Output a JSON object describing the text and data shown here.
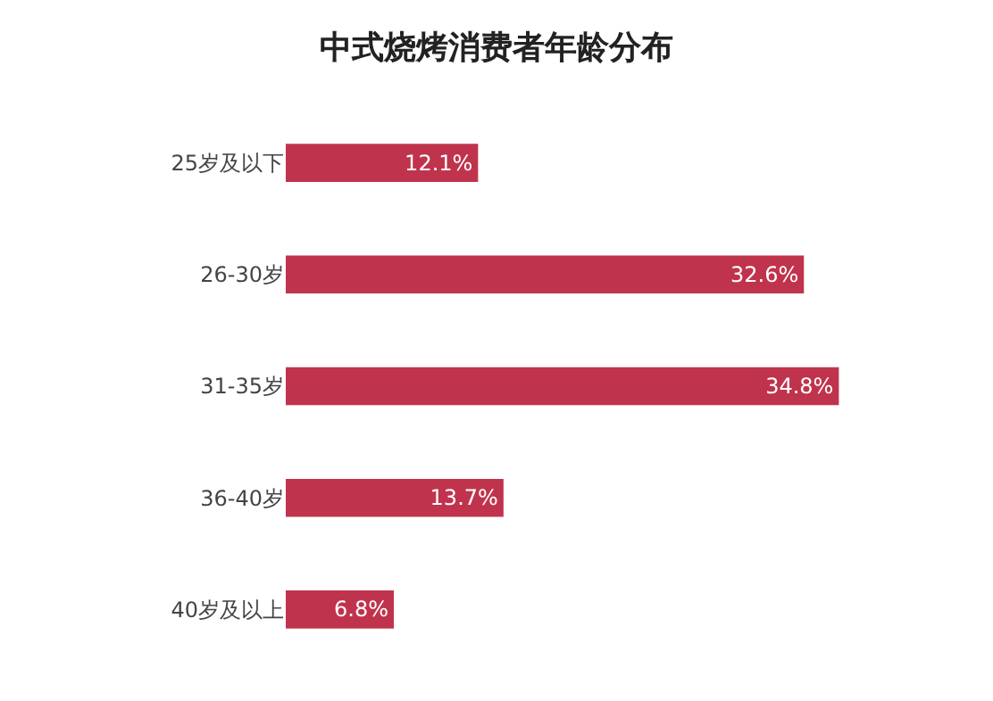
{
  "chart_data": {
    "type": "bar",
    "orientation": "horizontal",
    "title": "中式烧烤消费者年龄分布",
    "categories": [
      "25岁及以下",
      "26-30岁",
      "31-35岁",
      "36-40岁",
      "40岁及以上"
    ],
    "values": [
      12.1,
      32.6,
      34.8,
      13.7,
      6.8
    ],
    "value_labels": [
      "12.1%",
      "32.6%",
      "34.8%",
      "13.7%",
      "6.8%"
    ],
    "color": "#c0334d"
  }
}
